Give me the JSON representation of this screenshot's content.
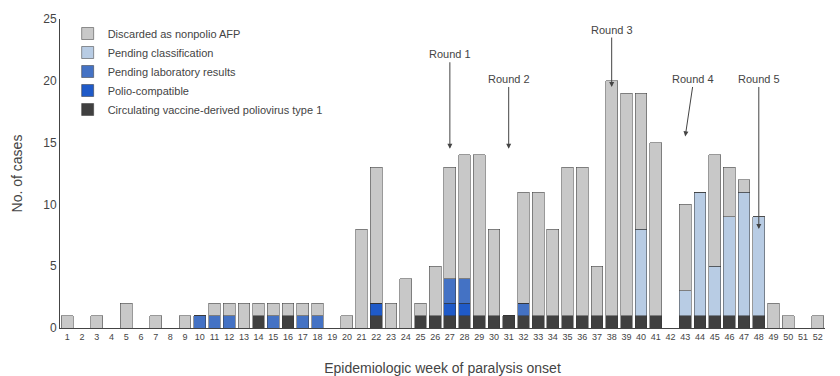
{
  "chart_data": {
    "type": "bar",
    "stacked": true,
    "grid": false,
    "legend": "upper left",
    "x_label": "Epidemiologic week of paralysis onset",
    "y_label": "No. of cases",
    "x": [
      1,
      2,
      3,
      4,
      5,
      6,
      7,
      8,
      9,
      10,
      11,
      12,
      13,
      14,
      15,
      16,
      17,
      18,
      19,
      20,
      21,
      22,
      23,
      24,
      25,
      26,
      27,
      28,
      29,
      30,
      31,
      32,
      33,
      34,
      35,
      36,
      37,
      38,
      39,
      40,
      41,
      42,
      43,
      44,
      45,
      46,
      47,
      48,
      49,
      50,
      51,
      52
    ],
    "xlim": [
      0.5,
      52.5
    ],
    "xticks": [
      1,
      2,
      3,
      4,
      5,
      6,
      7,
      8,
      9,
      10,
      11,
      12,
      13,
      14,
      15,
      16,
      17,
      18,
      19,
      20,
      21,
      22,
      23,
      24,
      25,
      26,
      27,
      28,
      29,
      30,
      31,
      32,
      33,
      34,
      35,
      36,
      37,
      38,
      39,
      40,
      41,
      42,
      43,
      44,
      45,
      46,
      47,
      48,
      49,
      50,
      51,
      52
    ],
    "ylim": [
      0,
      25
    ],
    "yticks": [
      0,
      5,
      10,
      15,
      20,
      25
    ],
    "series": [
      {
        "name": "Circulating vaccine-derived poliovirus type 1",
        "color": "#404040",
        "values": [
          0,
          0,
          0,
          0,
          0,
          0,
          0,
          0,
          0,
          0,
          0,
          0,
          0,
          1,
          0,
          1,
          0,
          0,
          0,
          0,
          0,
          1,
          0,
          0,
          1,
          1,
          1,
          1,
          1,
          1,
          1,
          1,
          1,
          1,
          1,
          1,
          1,
          1,
          1,
          1,
          1,
          0,
          1,
          1,
          1,
          1,
          1,
          1,
          0,
          0,
          0,
          0
        ]
      },
      {
        "name": "Polio-compatible",
        "color": "#1f5ac8",
        "values": [
          0,
          0,
          0,
          0,
          0,
          0,
          0,
          0,
          0,
          0,
          0,
          0,
          0,
          0,
          0,
          0,
          0,
          0,
          0,
          0,
          0,
          1,
          0,
          0,
          0,
          0,
          1,
          1,
          0,
          0,
          0,
          0,
          0,
          0,
          0,
          0,
          0,
          0,
          0,
          0,
          0,
          0,
          0,
          0,
          0,
          0,
          0,
          0,
          0,
          0,
          0,
          0
        ]
      },
      {
        "name": "Pending laboratory results",
        "color": "#4472c4",
        "values": [
          0,
          0,
          0,
          0,
          0,
          0,
          0,
          0,
          0,
          1,
          1,
          1,
          0,
          0,
          1,
          0,
          1,
          1,
          0,
          0,
          0,
          0,
          0,
          0,
          0,
          0,
          2,
          2,
          0,
          0,
          0,
          1,
          0,
          0,
          0,
          0,
          0,
          0,
          0,
          0,
          0,
          0,
          0,
          0,
          0,
          0,
          0,
          0,
          0,
          0,
          0,
          0
        ]
      },
      {
        "name": "Pending classification",
        "color": "#b8cce4",
        "values": [
          0,
          0,
          0,
          0,
          0,
          0,
          0,
          0,
          0,
          0,
          0,
          0,
          0,
          0,
          0,
          0,
          0,
          0,
          0,
          0,
          0,
          0,
          0,
          0,
          0,
          0,
          0,
          0,
          0,
          0,
          0,
          0,
          0,
          0,
          0,
          0,
          0,
          0,
          0,
          7,
          0,
          0,
          2,
          10,
          4,
          8,
          10,
          8,
          0,
          0,
          0,
          0
        ]
      },
      {
        "name": "Discarded as nonpolio AFP",
        "color": "#c8c8c8",
        "values": [
          1,
          0,
          1,
          0,
          2,
          0,
          1,
          0,
          1,
          0,
          1,
          1,
          2,
          1,
          1,
          1,
          1,
          1,
          0,
          1,
          8,
          11,
          2,
          4,
          1,
          4,
          9,
          10,
          13,
          7,
          0,
          9,
          10,
          7,
          12,
          12,
          4,
          19,
          18,
          11,
          14,
          0,
          7,
          0,
          9,
          4,
          1,
          0,
          2,
          1,
          0,
          1
        ]
      }
    ],
    "annotations": [
      {
        "text": "Round 1",
        "x": 27,
        "y": 14.5,
        "text_x": 27,
        "text_y": 21.5
      },
      {
        "text": "Round 2",
        "x": 31,
        "y": 14.5,
        "text_x": 31,
        "text_y": 19.5
      },
      {
        "text": "Round 3",
        "x": 38,
        "y": 19.5,
        "text_x": 38,
        "text_y": 23.5
      },
      {
        "text": "Round 4",
        "x": 43,
        "y": 15.5,
        "text_x": 43.5,
        "text_y": 19.5
      },
      {
        "text": "Round 5",
        "x": 48,
        "y": 8.0,
        "text_x": 48,
        "text_y": 19.5
      }
    ]
  }
}
